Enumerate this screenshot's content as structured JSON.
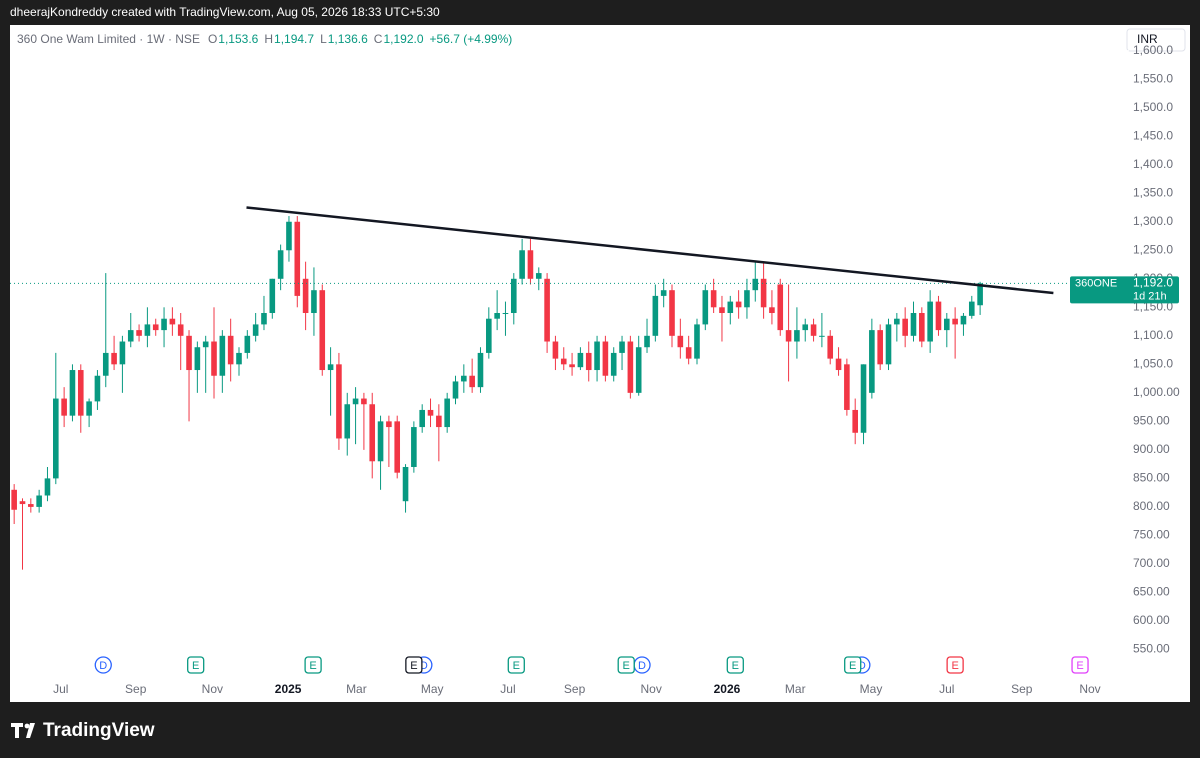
{
  "header": {
    "credit": "dheerajKondreddy created with TradingView.com, Aug 05, 2026 18:33 UTC+5:30",
    "brand": "TradingView"
  },
  "chart_data": {
    "type": "candlestick",
    "title": "360 One Wam Limited · 1W · NSE",
    "ohlc_legend": [
      {
        "label": "O",
        "value": "1,153.6"
      },
      {
        "label": "H",
        "value": "1,194.7"
      },
      {
        "label": "L",
        "value": "1,136.6"
      },
      {
        "label": "C",
        "value": "1,192.0"
      }
    ],
    "change": "+56.7 (+4.99%)",
    "currency": "INR",
    "price_label": {
      "symbol": "360ONE",
      "price": "1,192.0",
      "countdown": "1d 21h",
      "value": 1192.0
    },
    "up_color": "#089981",
    "down_color": "#f23645",
    "candles": [
      [
        830,
        840,
        770,
        795
      ],
      [
        810,
        815,
        690,
        805
      ],
      [
        805,
        815,
        790,
        800
      ],
      [
        800,
        830,
        790,
        820
      ],
      [
        820,
        870,
        810,
        850
      ],
      [
        850,
        1070,
        840,
        990
      ],
      [
        990,
        1010,
        940,
        960
      ],
      [
        960,
        1050,
        950,
        1040
      ],
      [
        1040,
        1050,
        930,
        960
      ],
      [
        960,
        990,
        940,
        985
      ],
      [
        985,
        1040,
        970,
        1030
      ],
      [
        1030,
        1210,
        1010,
        1070
      ],
      [
        1070,
        1100,
        1040,
        1050
      ],
      [
        1050,
        1100,
        1000,
        1090
      ],
      [
        1090,
        1140,
        1080,
        1110
      ],
      [
        1110,
        1120,
        1090,
        1100
      ],
      [
        1100,
        1150,
        1080,
        1120
      ],
      [
        1120,
        1130,
        1100,
        1110
      ],
      [
        1110,
        1150,
        1080,
        1130
      ],
      [
        1130,
        1150,
        1100,
        1120
      ],
      [
        1120,
        1140,
        1040,
        1100
      ],
      [
        1100,
        1110,
        950,
        1040
      ],
      [
        1040,
        1090,
        1000,
        1080
      ],
      [
        1080,
        1100,
        1000,
        1090
      ],
      [
        1090,
        1150,
        990,
        1030
      ],
      [
        1030,
        1110,
        1000,
        1100
      ],
      [
        1100,
        1130,
        1020,
        1050
      ],
      [
        1050,
        1080,
        1030,
        1070
      ],
      [
        1070,
        1110,
        1060,
        1100
      ],
      [
        1100,
        1140,
        1090,
        1120
      ],
      [
        1120,
        1170,
        1110,
        1140
      ],
      [
        1140,
        1200,
        1130,
        1200
      ],
      [
        1200,
        1260,
        1180,
        1250
      ],
      [
        1250,
        1310,
        1230,
        1300
      ],
      [
        1300,
        1310,
        1150,
        1170
      ],
      [
        1200,
        1230,
        1110,
        1140
      ],
      [
        1140,
        1220,
        1100,
        1180
      ],
      [
        1180,
        1190,
        1030,
        1040
      ],
      [
        1040,
        1080,
        960,
        1050
      ],
      [
        1050,
        1070,
        900,
        920
      ],
      [
        920,
        1000,
        890,
        980
      ],
      [
        980,
        1010,
        910,
        990
      ],
      [
        990,
        1000,
        900,
        980
      ],
      [
        980,
        1000,
        850,
        880
      ],
      [
        880,
        960,
        830,
        950
      ],
      [
        950,
        960,
        870,
        940
      ],
      [
        950,
        960,
        850,
        860
      ],
      [
        810,
        875,
        790,
        870
      ],
      [
        870,
        950,
        860,
        940
      ],
      [
        940,
        980,
        930,
        970
      ],
      [
        970,
        990,
        940,
        960
      ],
      [
        960,
        980,
        880,
        940
      ],
      [
        940,
        1000,
        930,
        990
      ],
      [
        990,
        1030,
        980,
        1020
      ],
      [
        1020,
        1050,
        1000,
        1030
      ],
      [
        1030,
        1060,
        1000,
        1010
      ],
      [
        1010,
        1080,
        1000,
        1070
      ],
      [
        1070,
        1150,
        1060,
        1130
      ],
      [
        1130,
        1180,
        1110,
        1140
      ],
      [
        1140,
        1160,
        1100,
        1140
      ],
      [
        1140,
        1210,
        1120,
        1200
      ],
      [
        1200,
        1270,
        1190,
        1250
      ],
      [
        1250,
        1270,
        1190,
        1200
      ],
      [
        1200,
        1220,
        1180,
        1210
      ],
      [
        1200,
        1210,
        1070,
        1090
      ],
      [
        1090,
        1100,
        1040,
        1060
      ],
      [
        1060,
        1080,
        1040,
        1050
      ],
      [
        1050,
        1070,
        1030,
        1045
      ],
      [
        1045,
        1080,
        1040,
        1070
      ],
      [
        1070,
        1090,
        1020,
        1040
      ],
      [
        1040,
        1100,
        1020,
        1090
      ],
      [
        1090,
        1100,
        1020,
        1030
      ],
      [
        1030,
        1080,
        1020,
        1070
      ],
      [
        1070,
        1100,
        1040,
        1090
      ],
      [
        1090,
        1100,
        990,
        1000
      ],
      [
        1000,
        1100,
        995,
        1080
      ],
      [
        1080,
        1130,
        1070,
        1100
      ],
      [
        1100,
        1190,
        1090,
        1170
      ],
      [
        1170,
        1200,
        1150,
        1180
      ],
      [
        1180,
        1190,
        1080,
        1100
      ],
      [
        1100,
        1130,
        1060,
        1080
      ],
      [
        1080,
        1100,
        1050,
        1060
      ],
      [
        1060,
        1130,
        1050,
        1120
      ],
      [
        1120,
        1190,
        1110,
        1180
      ],
      [
        1180,
        1200,
        1140,
        1150
      ],
      [
        1150,
        1170,
        1090,
        1140
      ],
      [
        1140,
        1170,
        1120,
        1160
      ],
      [
        1160,
        1180,
        1130,
        1150
      ],
      [
        1150,
        1200,
        1130,
        1180
      ],
      [
        1180,
        1230,
        1160,
        1200
      ],
      [
        1200,
        1230,
        1130,
        1150
      ],
      [
        1150,
        1180,
        1120,
        1140
      ],
      [
        1190,
        1200,
        1100,
        1110
      ],
      [
        1110,
        1190,
        1020,
        1090
      ],
      [
        1090,
        1150,
        1060,
        1110
      ],
      [
        1110,
        1130,
        1090,
        1120
      ],
      [
        1120,
        1130,
        1090,
        1100
      ],
      [
        1100,
        1140,
        1080,
        1100
      ],
      [
        1100,
        1110,
        1050,
        1060
      ],
      [
        1060,
        1080,
        1030,
        1040
      ],
      [
        1050,
        1060,
        960,
        970
      ],
      [
        970,
        990,
        910,
        930
      ],
      [
        930,
        1050,
        910,
        1050
      ],
      [
        1000,
        1130,
        990,
        1110
      ],
      [
        1110,
        1120,
        1040,
        1050
      ],
      [
        1050,
        1130,
        1040,
        1120
      ],
      [
        1120,
        1140,
        1090,
        1130
      ],
      [
        1130,
        1150,
        1080,
        1100
      ],
      [
        1100,
        1160,
        1090,
        1140
      ],
      [
        1140,
        1150,
        1080,
        1090
      ],
      [
        1090,
        1180,
        1070,
        1160
      ],
      [
        1160,
        1170,
        1100,
        1110
      ],
      [
        1110,
        1140,
        1080,
        1130
      ],
      [
        1130,
        1150,
        1060,
        1120
      ],
      [
        1120,
        1140,
        1100,
        1135
      ],
      [
        1135,
        1170,
        1130,
        1160
      ],
      [
        1153.6,
        1194.7,
        1136.6,
        1192.0
      ]
    ],
    "trendline": {
      "x": [
        27.9,
        124.8
      ],
      "y": [
        1325,
        1175
      ],
      "color": "#131722"
    },
    "events": [
      {
        "x": 10.7,
        "label": "D",
        "color": "#2962ff"
      },
      {
        "x": 21.8,
        "label": "E",
        "color": "#089981"
      },
      {
        "x": 35.9,
        "label": "E",
        "color": "#089981"
      },
      {
        "x": 49.2,
        "label": "D",
        "color": "#2962ff"
      },
      {
        "x": 48.0,
        "label": "E",
        "color": "#131722"
      },
      {
        "x": 60.3,
        "label": "E",
        "color": "#089981"
      },
      {
        "x": 75.4,
        "label": "D",
        "color": "#2962ff"
      },
      {
        "x": 73.5,
        "label": "E",
        "color": "#089981"
      },
      {
        "x": 86.6,
        "label": "E",
        "color": "#089981"
      },
      {
        "x": 101.8,
        "label": "D",
        "color": "#2962ff"
      },
      {
        "x": 100.7,
        "label": "E",
        "color": "#089981"
      },
      {
        "x": 113.0,
        "label": "E",
        "color": "#f23645"
      },
      {
        "x": 128.0,
        "label": "E",
        "color": "#e040fb"
      }
    ],
    "xlim": [
      -0.5,
      133.4
    ],
    "xticks": [
      {
        "value": 5.6,
        "label": "Jul"
      },
      {
        "value": 14.6,
        "label": "Sep"
      },
      {
        "value": 23.8,
        "label": "Nov"
      },
      {
        "value": 32.9,
        "label": "2025"
      },
      {
        "value": 41.1,
        "label": "Mar"
      },
      {
        "value": 50.2,
        "label": "May"
      },
      {
        "value": 59.3,
        "label": "Jul"
      },
      {
        "value": 67.3,
        "label": "Sep"
      },
      {
        "value": 76.5,
        "label": "Nov"
      },
      {
        "value": 85.6,
        "label": "2026"
      },
      {
        "value": 93.8,
        "label": "Mar"
      },
      {
        "value": 102.9,
        "label": "May"
      },
      {
        "value": 112.0,
        "label": "Jul"
      },
      {
        "value": 121.0,
        "label": "Sep"
      },
      {
        "value": 129.2,
        "label": "Nov"
      }
    ],
    "ylim": [
      500,
      1645
    ],
    "yticks": [
      {
        "value": 550,
        "label": "550.00"
      },
      {
        "value": 600,
        "label": "600.00"
      },
      {
        "value": 650,
        "label": "650.00"
      },
      {
        "value": 700,
        "label": "700.00"
      },
      {
        "value": 750,
        "label": "750.00"
      },
      {
        "value": 800,
        "label": "800.00"
      },
      {
        "value": 850,
        "label": "850.00"
      },
      {
        "value": 900,
        "label": "900.00"
      },
      {
        "value": 950,
        "label": "950.00"
      },
      {
        "value": 1000,
        "label": "1,000.00"
      },
      {
        "value": 1050,
        "label": "1,050.0"
      },
      {
        "value": 1100,
        "label": "1,100.0"
      },
      {
        "value": 1150,
        "label": "1,150.0"
      },
      {
        "value": 1200,
        "label": "1,200.0"
      },
      {
        "value": 1250,
        "label": "1,250.0"
      },
      {
        "value": 1300,
        "label": "1,300.0"
      },
      {
        "value": 1350,
        "label": "1,350.0"
      },
      {
        "value": 1400,
        "label": "1,400.0"
      },
      {
        "value": 1450,
        "label": "1,450.0"
      },
      {
        "value": 1500,
        "label": "1,500.0"
      },
      {
        "value": 1550,
        "label": "1,550.0"
      },
      {
        "value": 1600,
        "label": "1,600.0"
      }
    ]
  }
}
